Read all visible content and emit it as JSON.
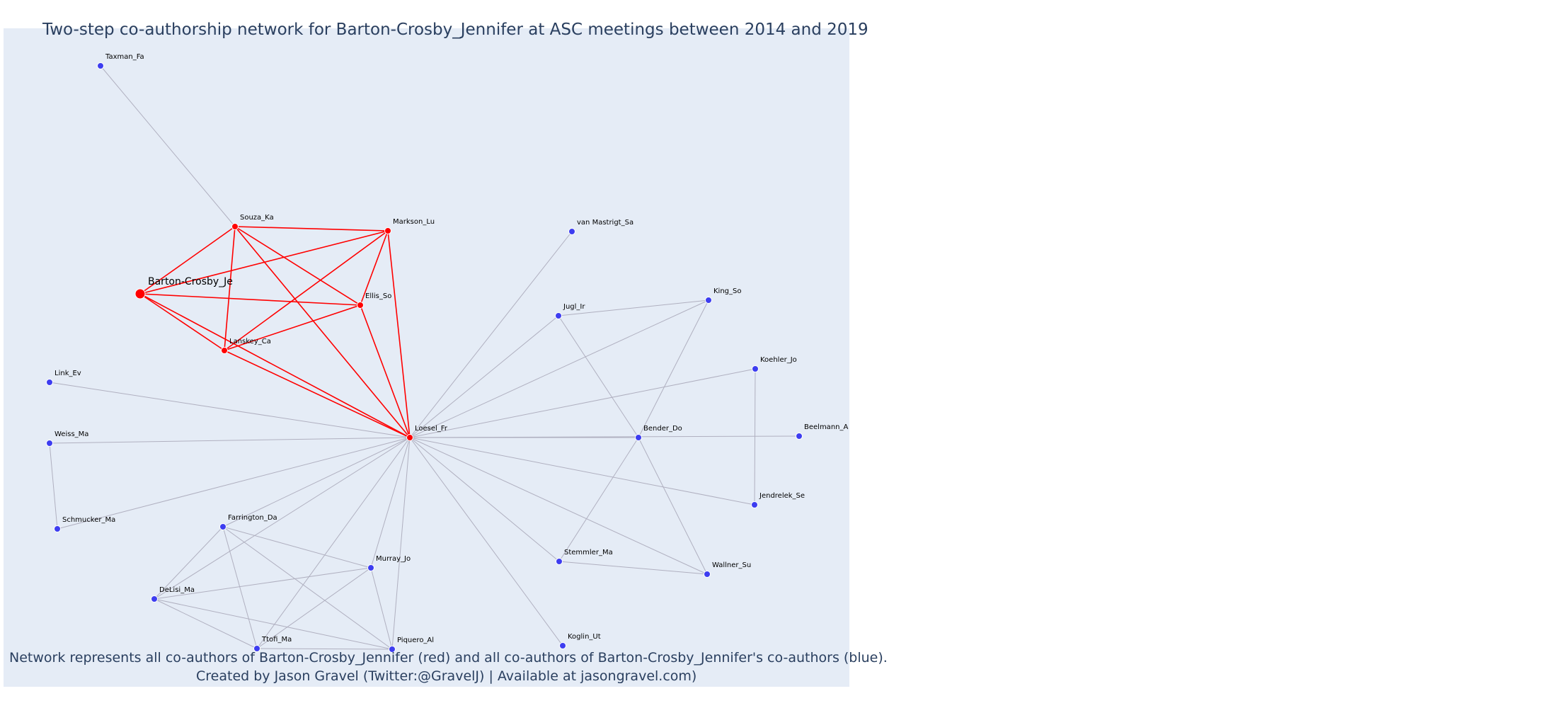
{
  "title": "Two-step co-authorship network for Barton-Crosby_Jennifer at ASC meetings between 2014 and 2019",
  "caption_line1": "Network represents all co-authors of Barton-Crosby_Jennifer (red) and all co-authors of Barton-Crosby_Jennifer's co-authors (blue).",
  "caption_line2": "Created by Jason Gravel (Twitter:@GravelJ) | Available at jasongravel.com)",
  "colors": {
    "red": "#ff0000",
    "blue": "#3d3df0",
    "grey_edge": "#b0b0c0",
    "background": "#e5ecf6"
  },
  "nodes": [
    {
      "id": "Barton-Crosby_Je",
      "group": "ego"
    },
    {
      "id": "Souza_Ka",
      "group": "red"
    },
    {
      "id": "Markson_Lu",
      "group": "red"
    },
    {
      "id": "Ellis_So",
      "group": "red"
    },
    {
      "id": "Lanskey_Ca",
      "group": "red"
    },
    {
      "id": "Loesel_Fr",
      "group": "red"
    },
    {
      "id": "Taxman_Fa",
      "group": "blue"
    },
    {
      "id": "van Mastrigt_Sa",
      "group": "blue"
    },
    {
      "id": "Jugl_Ir",
      "group": "blue"
    },
    {
      "id": "King_So",
      "group": "blue"
    },
    {
      "id": "Koehler_Jo",
      "group": "blue"
    },
    {
      "id": "Link_Ev",
      "group": "blue"
    },
    {
      "id": "Weiss_Ma",
      "group": "blue"
    },
    {
      "id": "Bender_Do",
      "group": "blue"
    },
    {
      "id": "Beelmann_A",
      "group": "blue"
    },
    {
      "id": "Schmucker_Ma",
      "group": "blue"
    },
    {
      "id": "Jendrelek_Se",
      "group": "blue"
    },
    {
      "id": "Farrington_Da",
      "group": "blue"
    },
    {
      "id": "Stemmler_Ma",
      "group": "blue"
    },
    {
      "id": "Murray_Jo",
      "group": "blue"
    },
    {
      "id": "Wallner_Su",
      "group": "blue"
    },
    {
      "id": "DeLisi_Ma",
      "group": "blue"
    },
    {
      "id": "Ttofi_Ma",
      "group": "blue"
    },
    {
      "id": "Piquero_Al",
      "group": "blue"
    },
    {
      "id": "Koglin_Ut",
      "group": "blue"
    }
  ],
  "edges": [
    [
      "Barton-Crosby_Je",
      "Souza_Ka",
      "red"
    ],
    [
      "Barton-Crosby_Je",
      "Markson_Lu",
      "red"
    ],
    [
      "Barton-Crosby_Je",
      "Ellis_So",
      "red"
    ],
    [
      "Barton-Crosby_Je",
      "Lanskey_Ca",
      "red"
    ],
    [
      "Barton-Crosby_Je",
      "Loesel_Fr",
      "red"
    ],
    [
      "Souza_Ka",
      "Markson_Lu",
      "red"
    ],
    [
      "Souza_Ka",
      "Ellis_So",
      "red"
    ],
    [
      "Souza_Ka",
      "Lanskey_Ca",
      "red"
    ],
    [
      "Souza_Ka",
      "Loesel_Fr",
      "red"
    ],
    [
      "Markson_Lu",
      "Ellis_So",
      "red"
    ],
    [
      "Markson_Lu",
      "Lanskey_Ca",
      "red"
    ],
    [
      "Markson_Lu",
      "Loesel_Fr",
      "red"
    ],
    [
      "Ellis_So",
      "Lanskey_Ca",
      "red"
    ],
    [
      "Ellis_So",
      "Loesel_Fr",
      "red"
    ],
    [
      "Lanskey_Ca",
      "Loesel_Fr",
      "red"
    ],
    [
      "Taxman_Fa",
      "Souza_Ka",
      "grey"
    ],
    [
      "Loesel_Fr",
      "van Mastrigt_Sa",
      "grey"
    ],
    [
      "Loesel_Fr",
      "Jugl_Ir",
      "grey"
    ],
    [
      "Loesel_Fr",
      "King_So",
      "grey"
    ],
    [
      "Loesel_Fr",
      "Koehler_Jo",
      "grey"
    ],
    [
      "Loesel_Fr",
      "Link_Ev",
      "grey"
    ],
    [
      "Loesel_Fr",
      "Weiss_Ma",
      "grey"
    ],
    [
      "Loesel_Fr",
      "Bender_Do",
      "grey"
    ],
    [
      "Loesel_Fr",
      "Beelmann_A",
      "grey"
    ],
    [
      "Loesel_Fr",
      "Schmucker_Ma",
      "grey"
    ],
    [
      "Loesel_Fr",
      "Jendrelek_Se",
      "grey"
    ],
    [
      "Loesel_Fr",
      "Farrington_Da",
      "grey"
    ],
    [
      "Loesel_Fr",
      "Stemmler_Ma",
      "grey"
    ],
    [
      "Loesel_Fr",
      "Murray_Jo",
      "grey"
    ],
    [
      "Loesel_Fr",
      "Wallner_Su",
      "grey"
    ],
    [
      "Loesel_Fr",
      "DeLisi_Ma",
      "grey"
    ],
    [
      "Loesel_Fr",
      "Ttofi_Ma",
      "grey"
    ],
    [
      "Loesel_Fr",
      "Piquero_Al",
      "grey"
    ],
    [
      "Loesel_Fr",
      "Koglin_Ut",
      "grey"
    ],
    [
      "Jugl_Ir",
      "King_So",
      "grey"
    ],
    [
      "Jugl_Ir",
      "Bender_Do",
      "grey"
    ],
    [
      "King_So",
      "Bender_Do",
      "grey"
    ],
    [
      "Koehler_Jo",
      "Jendrelek_Se",
      "grey"
    ],
    [
      "Weiss_Ma",
      "Schmucker_Ma",
      "grey"
    ],
    [
      "Bender_Do",
      "Stemmler_Ma",
      "grey"
    ],
    [
      "Bender_Do",
      "Wallner_Su",
      "grey"
    ],
    [
      "Stemmler_Ma",
      "Wallner_Su",
      "grey"
    ],
    [
      "Farrington_Da",
      "DeLisi_Ma",
      "grey"
    ],
    [
      "Farrington_Da",
      "Murray_Jo",
      "grey"
    ],
    [
      "Farrington_Da",
      "Ttofi_Ma",
      "grey"
    ],
    [
      "Farrington_Da",
      "Piquero_Al",
      "grey"
    ],
    [
      "DeLisi_Ma",
      "Murray_Jo",
      "grey"
    ],
    [
      "DeLisi_Ma",
      "Ttofi_Ma",
      "grey"
    ],
    [
      "DeLisi_Ma",
      "Piquero_Al",
      "grey"
    ],
    [
      "Murray_Jo",
      "Ttofi_Ma",
      "grey"
    ],
    [
      "Murray_Jo",
      "Piquero_Al",
      "grey"
    ],
    [
      "Ttofi_Ma",
      "Piquero_Al",
      "grey"
    ]
  ]
}
